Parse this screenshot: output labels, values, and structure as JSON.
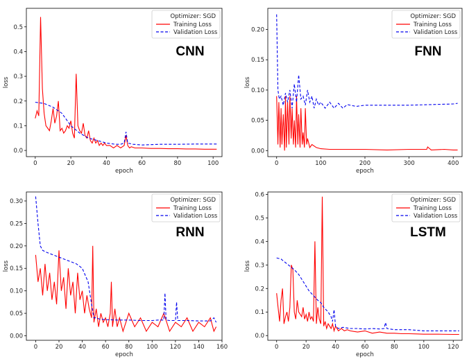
{
  "figure": {
    "legend_title": "Optimizer: SGD"
  },
  "chart_data": [
    {
      "type": "line",
      "title": "CNN",
      "xlabel": "epoch",
      "ylabel": "loss",
      "xlim": [
        -5,
        105
      ],
      "ylim": [
        -0.025,
        0.575
      ],
      "xticks": [
        0,
        20,
        40,
        60,
        80,
        100
      ],
      "yticks": [
        0.0,
        0.1,
        0.2,
        0.3,
        0.4,
        0.5
      ],
      "legend": "top-right",
      "grid": false,
      "series": [
        {
          "name": "Training Loss",
          "color": "#ff0000",
          "style": "solid",
          "x": [
            0,
            1,
            2,
            3,
            4,
            5,
            6,
            7,
            8,
            9,
            10,
            11,
            12,
            13,
            14,
            15,
            16,
            17,
            18,
            19,
            20,
            21,
            22,
            23,
            24,
            25,
            26,
            27,
            28,
            29,
            30,
            31,
            32,
            33,
            34,
            35,
            36,
            37,
            38,
            39,
            40,
            42,
            44,
            46,
            48,
            50,
            51,
            52,
            53,
            54,
            56,
            60,
            65,
            70,
            75,
            80,
            85,
            90,
            95,
            100,
            102
          ],
          "y": [
            0.13,
            0.16,
            0.14,
            0.54,
            0.25,
            0.15,
            0.1,
            0.09,
            0.08,
            0.12,
            0.17,
            0.11,
            0.14,
            0.2,
            0.08,
            0.09,
            0.07,
            0.08,
            0.1,
            0.09,
            0.12,
            0.07,
            0.05,
            0.31,
            0.1,
            0.08,
            0.07,
            0.11,
            0.06,
            0.05,
            0.08,
            0.04,
            0.03,
            0.05,
            0.03,
            0.04,
            0.02,
            0.03,
            0.02,
            0.03,
            0.02,
            0.02,
            0.01,
            0.02,
            0.01,
            0.02,
            0.06,
            0.02,
            0.01,
            0.015,
            0.01,
            0.01,
            0.008,
            0.008,
            0.007,
            0.007,
            0.006,
            0.006,
            0.005,
            0.005,
            0.005
          ]
        },
        {
          "name": "Validation Loss",
          "color": "#0000ee",
          "style": "dashed",
          "x": [
            0,
            5,
            10,
            15,
            20,
            25,
            30,
            35,
            40,
            45,
            48,
            50,
            51,
            52,
            55,
            60,
            70,
            80,
            90,
            100,
            102
          ],
          "y": [
            0.195,
            0.19,
            0.175,
            0.15,
            0.1,
            0.07,
            0.05,
            0.04,
            0.03,
            0.025,
            0.025,
            0.03,
            0.075,
            0.03,
            0.025,
            0.022,
            0.025,
            0.025,
            0.026,
            0.026,
            0.026
          ]
        }
      ]
    },
    {
      "type": "line",
      "title": "FNN",
      "xlabel": "epoch",
      "ylabel": "loss",
      "xlim": [
        -20,
        420
      ],
      "ylim": [
        -0.01,
        0.235
      ],
      "xticks": [
        0,
        100,
        200,
        300,
        400
      ],
      "yticks": [
        0.0,
        0.05,
        0.1,
        0.15,
        0.2
      ],
      "legend": "top-right",
      "grid": false,
      "series": [
        {
          "name": "Training Loss",
          "color": "#ff0000",
          "style": "solid",
          "x": [
            0,
            3,
            5,
            8,
            10,
            12,
            15,
            18,
            20,
            22,
            25,
            28,
            30,
            33,
            35,
            38,
            40,
            43,
            45,
            48,
            50,
            53,
            55,
            58,
            60,
            63,
            65,
            68,
            70,
            75,
            80,
            90,
            100,
            120,
            150,
            200,
            250,
            300,
            340,
            342,
            350,
            380,
            400,
            410
          ],
          "y": [
            0.09,
            0.01,
            0.08,
            0.005,
            0.07,
            0.01,
            0.06,
            0.0,
            0.09,
            0.005,
            0.08,
            0.01,
            0.09,
            0.02,
            0.07,
            0.01,
            0.05,
            0.005,
            0.09,
            0.01,
            0.06,
            0.005,
            0.07,
            0.01,
            0.03,
            0.005,
            0.07,
            0.01,
            0.02,
            0.005,
            0.01,
            0.005,
            0.003,
            0.002,
            0.002,
            0.002,
            0.001,
            0.002,
            0.002,
            0.006,
            0.001,
            0.002,
            0.001,
            0.001
          ]
        },
        {
          "name": "Validation Loss",
          "color": "#0000ee",
          "style": "dashed",
          "x": [
            0,
            3,
            6,
            10,
            15,
            20,
            25,
            30,
            35,
            40,
            45,
            50,
            55,
            60,
            65,
            70,
            75,
            80,
            85,
            90,
            95,
            100,
            110,
            120,
            130,
            140,
            150,
            160,
            180,
            200,
            250,
            300,
            350,
            400,
            410
          ],
          "y": [
            0.225,
            0.1,
            0.085,
            0.09,
            0.075,
            0.095,
            0.08,
            0.1,
            0.07,
            0.11,
            0.08,
            0.125,
            0.085,
            0.09,
            0.075,
            0.1,
            0.08,
            0.09,
            0.07,
            0.085,
            0.075,
            0.08,
            0.07,
            0.08,
            0.07,
            0.078,
            0.07,
            0.076,
            0.073,
            0.075,
            0.075,
            0.075,
            0.076,
            0.077,
            0.078
          ]
        }
      ]
    },
    {
      "type": "line",
      "title": "RNN",
      "xlabel": "epoch",
      "ylabel": "loss",
      "xlim": [
        -8,
        160
      ],
      "ylim": [
        -0.01,
        0.32
      ],
      "xticks": [
        0,
        20,
        40,
        60,
        80,
        100,
        120,
        140,
        160
      ],
      "yticks": [
        0.0,
        0.05,
        0.1,
        0.15,
        0.2,
        0.25,
        0.3
      ],
      "legend": "top-right",
      "grid": false,
      "series": [
        {
          "name": "Training Loss",
          "color": "#ff0000",
          "style": "solid",
          "x": [
            0,
            2,
            4,
            6,
            8,
            10,
            12,
            14,
            16,
            18,
            20,
            22,
            24,
            26,
            28,
            30,
            32,
            34,
            36,
            38,
            40,
            42,
            44,
            46,
            48,
            49,
            50,
            52,
            54,
            56,
            58,
            60,
            62,
            64,
            65,
            66,
            68,
            70,
            72,
            75,
            80,
            85,
            90,
            95,
            100,
            105,
            110,
            115,
            120,
            125,
            130,
            135,
            140,
            145,
            150,
            153,
            155
          ],
          "y": [
            0.18,
            0.12,
            0.15,
            0.09,
            0.16,
            0.1,
            0.14,
            0.08,
            0.12,
            0.07,
            0.19,
            0.1,
            0.13,
            0.06,
            0.15,
            0.09,
            0.12,
            0.05,
            0.14,
            0.08,
            0.1,
            0.05,
            0.09,
            0.06,
            0.04,
            0.2,
            0.03,
            0.06,
            0.02,
            0.05,
            0.03,
            0.04,
            0.02,
            0.05,
            0.12,
            0.02,
            0.06,
            0.02,
            0.04,
            0.01,
            0.05,
            0.02,
            0.04,
            0.01,
            0.03,
            0.02,
            0.05,
            0.01,
            0.03,
            0.02,
            0.04,
            0.01,
            0.03,
            0.02,
            0.04,
            0.01,
            0.02
          ]
        },
        {
          "name": "Validation Loss",
          "color": "#0000ee",
          "style": "dashed",
          "x": [
            0,
            2,
            4,
            6,
            10,
            15,
            20,
            25,
            30,
            35,
            40,
            45,
            48,
            50,
            52,
            55,
            60,
            70,
            80,
            90,
            100,
            105,
            110,
            111,
            112,
            115,
            120,
            121,
            122,
            125,
            130,
            140,
            150,
            153,
            155
          ],
          "y": [
            0.31,
            0.25,
            0.2,
            0.19,
            0.185,
            0.18,
            0.175,
            0.17,
            0.165,
            0.16,
            0.15,
            0.12,
            0.07,
            0.04,
            0.04,
            0.037,
            0.036,
            0.035,
            0.035,
            0.034,
            0.034,
            0.035,
            0.035,
            0.095,
            0.035,
            0.034,
            0.034,
            0.075,
            0.034,
            0.034,
            0.034,
            0.033,
            0.033,
            0.04,
            0.03
          ]
        }
      ]
    },
    {
      "type": "line",
      "title": "LSTM",
      "xlabel": "epoch",
      "ylabel": "loss",
      "xlim": [
        -6,
        126
      ],
      "ylim": [
        -0.02,
        0.61
      ],
      "xticks": [
        0,
        20,
        40,
        60,
        80,
        100,
        120
      ],
      "yticks": [
        0.0,
        0.1,
        0.2,
        0.3,
        0.4,
        0.5,
        0.6
      ],
      "legend": "top-right",
      "grid": false,
      "series": [
        {
          "name": "Training Loss",
          "color": "#ff0000",
          "style": "solid",
          "x": [
            0,
            1,
            2,
            3,
            4,
            5,
            6,
            7,
            8,
            9,
            10,
            11,
            12,
            13,
            14,
            15,
            16,
            17,
            18,
            19,
            20,
            21,
            22,
            23,
            24,
            25,
            26,
            27,
            28,
            29,
            30,
            31,
            32,
            33,
            34,
            35,
            36,
            37,
            38,
            39,
            40,
            42,
            44,
            46,
            48,
            50,
            55,
            60,
            65,
            70,
            75,
            80,
            85,
            90,
            95,
            100,
            110,
            120,
            124
          ],
          "y": [
            0.18,
            0.12,
            0.06,
            0.15,
            0.2,
            0.05,
            0.08,
            0.1,
            0.06,
            0.12,
            0.3,
            0.28,
            0.1,
            0.07,
            0.15,
            0.1,
            0.09,
            0.08,
            0.12,
            0.07,
            0.09,
            0.06,
            0.1,
            0.07,
            0.08,
            0.06,
            0.4,
            0.05,
            0.12,
            0.07,
            0.05,
            0.59,
            0.04,
            0.06,
            0.03,
            0.05,
            0.04,
            0.03,
            0.05,
            0.02,
            0.04,
            0.02,
            0.03,
            0.02,
            0.025,
            0.02,
            0.015,
            0.02,
            0.01,
            0.015,
            0.01,
            0.01,
            0.008,
            0.008,
            0.007,
            0.006,
            0.006,
            0.005,
            0.005
          ]
        },
        {
          "name": "Validation Loss",
          "color": "#0000ee",
          "style": "dashed",
          "x": [
            0,
            3,
            5,
            8,
            10,
            12,
            15,
            18,
            20,
            22,
            25,
            28,
            30,
            32,
            35,
            37,
            38,
            39,
            40,
            42,
            45,
            50,
            55,
            60,
            65,
            70,
            73,
            74,
            75,
            80,
            90,
            100,
            110,
            120,
            124
          ],
          "y": [
            0.33,
            0.325,
            0.315,
            0.3,
            0.29,
            0.28,
            0.26,
            0.23,
            0.21,
            0.19,
            0.17,
            0.15,
            0.14,
            0.12,
            0.1,
            0.08,
            0.06,
            0.11,
            0.04,
            0.03,
            0.035,
            0.03,
            0.03,
            0.028,
            0.03,
            0.028,
            0.03,
            0.055,
            0.03,
            0.025,
            0.025,
            0.02,
            0.02,
            0.02,
            0.02
          ]
        }
      ]
    }
  ]
}
